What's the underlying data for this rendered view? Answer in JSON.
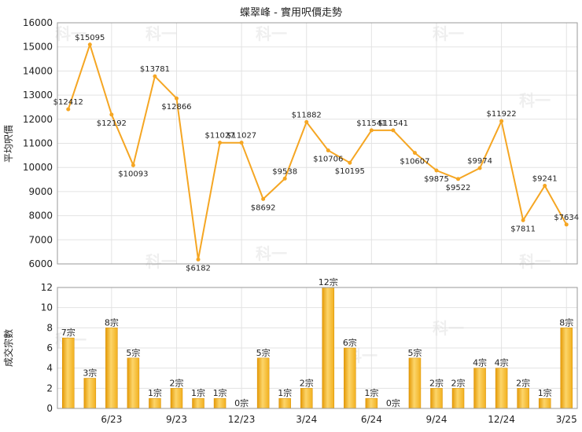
{
  "chart_data": {
    "title": "蝶翠峰 - 實用呎價走勢",
    "price_chart": {
      "type": "line",
      "ylabel": "平均呎價",
      "ylim": [
        6000,
        16000
      ],
      "yticks": [
        "6000",
        "7000",
        "8000",
        "9000",
        "10000",
        "11000",
        "12000",
        "13000",
        "14000",
        "15000",
        "16000"
      ],
      "series_color": "#f5a623",
      "values": [
        12412,
        15095,
        12192,
        10093,
        13781,
        12866,
        6182,
        11027,
        11027,
        8692,
        9538,
        11882,
        10706,
        10195,
        11541,
        11541,
        10607,
        9875,
        9522,
        9974,
        11922,
        7811,
        9241,
        7634
      ],
      "labels": [
        "$12412",
        "$15095",
        "$12192",
        "$10093",
        "$13781",
        "$12866",
        "$6182",
        "$11027",
        "$11027",
        "$8692",
        "$9538",
        "$11882",
        "$10706",
        "$10195",
        "$11541",
        "$11541",
        "$10607",
        "$9875",
        "$9522",
        "$9974",
        "$11922",
        "$7811",
        "$9241",
        "$7634"
      ]
    },
    "volume_chart": {
      "type": "bar",
      "ylabel": "成交宗數",
      "ylim": [
        0,
        12
      ],
      "yticks": [
        "0",
        "2",
        "4",
        "6",
        "8",
        "10",
        "12"
      ],
      "bar_color": "#f2b01e",
      "values": [
        7,
        3,
        8,
        5,
        1,
        2,
        1,
        1,
        0,
        5,
        1,
        2,
        12,
        6,
        1,
        0,
        5,
        2,
        2,
        4,
        4,
        2,
        1,
        8
      ],
      "labels": [
        "7宗",
        "3宗",
        "8宗",
        "5宗",
        "1宗",
        "2宗",
        "1宗",
        "1宗",
        "0宗",
        "5宗",
        "1宗",
        "2宗",
        "12宗",
        "6宗",
        "1宗",
        "0宗",
        "5宗",
        "2宗",
        "2宗",
        "4宗",
        "4宗",
        "2宗",
        "1宗",
        "8宗"
      ],
      "xticks": [
        {
          "index": 2.5,
          "label": "6/23"
        },
        {
          "index": 5.5,
          "label": "9/23"
        },
        {
          "index": 8.5,
          "label": "12/23"
        },
        {
          "index": 11.5,
          "label": "3/24"
        },
        {
          "index": 14.5,
          "label": "6/24"
        },
        {
          "index": 17.5,
          "label": "9/24"
        },
        {
          "index": 20.5,
          "label": "12/24"
        },
        {
          "index": 23.5,
          "label": "3/25"
        }
      ]
    },
    "grid": true,
    "watermark": "科一"
  }
}
